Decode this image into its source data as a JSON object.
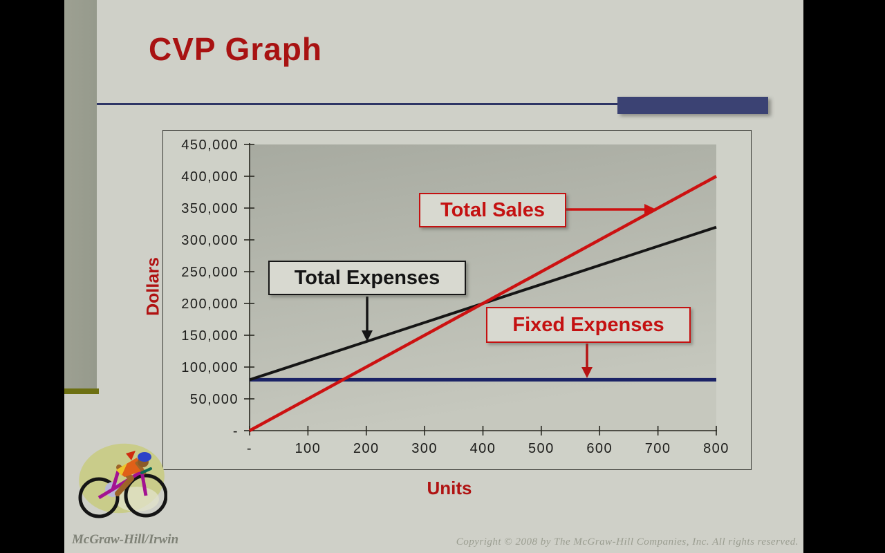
{
  "slide": {
    "title": "CVP Graph",
    "footer_left": "McGraw-Hill/Irwin",
    "footer_right": "Copyright © 2008 by The McGraw-Hill Companies, Inc. All rights reserved."
  },
  "icons": {
    "clipart": "cyclist-clipart"
  },
  "colors": {
    "slide_bg": "#cfd0c8",
    "title_red": "#a81212",
    "accent_navy": "#3b4273",
    "rule_navy": "#2e3565",
    "sidebar_strip": "#999c8f",
    "sidebar_accent_olive": "#6d7012",
    "plot_gradient_top": "#a9aca2",
    "plot_gradient_bottom": "#c6c8be",
    "sales_red": "#cc1111",
    "expenses_black": "#151515",
    "fixed_navy": "#1b2366"
  },
  "chart_data": {
    "type": "line",
    "title": "",
    "xlabel": "Units",
    "ylabel": "Dollars",
    "xlim": [
      0,
      800
    ],
    "ylim": [
      0,
      450000
    ],
    "grid": false,
    "legend": "none",
    "x_ticks": [
      {
        "label": "-",
        "value": 0
      },
      {
        "label": "100",
        "value": 100
      },
      {
        "label": "200",
        "value": 200
      },
      {
        "label": "300",
        "value": 300
      },
      {
        "label": "400",
        "value": 400
      },
      {
        "label": "500",
        "value": 500
      },
      {
        "label": "600",
        "value": 600
      },
      {
        "label": "700",
        "value": 700
      },
      {
        "label": "800",
        "value": 800
      }
    ],
    "y_ticks": [
      {
        "label": "450,000",
        "value": 450000
      },
      {
        "label": "400,000",
        "value": 400000
      },
      {
        "label": "350,000",
        "value": 350000
      },
      {
        "label": "300,000",
        "value": 300000
      },
      {
        "label": "250,000",
        "value": 250000
      },
      {
        "label": "200,000",
        "value": 200000
      },
      {
        "label": "150,000",
        "value": 150000
      },
      {
        "label": "100,000",
        "value": 100000
      },
      {
        "label": "50,000",
        "value": 50000
      },
      {
        "label": "-",
        "value": 0
      }
    ],
    "series": [
      {
        "name": "Fixed Expenses",
        "color": "#1b2366",
        "width": 5,
        "points": [
          [
            0,
            80000
          ],
          [
            800,
            80000
          ]
        ]
      },
      {
        "name": "Total Expenses",
        "color": "#151515",
        "width": 4,
        "points": [
          [
            0,
            80000
          ],
          [
            800,
            320000
          ]
        ]
      },
      {
        "name": "Total Sales",
        "color": "#cc1111",
        "width": 4.5,
        "points": [
          [
            0,
            0
          ],
          [
            800,
            400000
          ]
        ]
      }
    ],
    "annotations": [
      {
        "label": "Total Sales"
      },
      {
        "label": "Total Expenses"
      },
      {
        "label": "Fixed Expenses"
      }
    ]
  }
}
